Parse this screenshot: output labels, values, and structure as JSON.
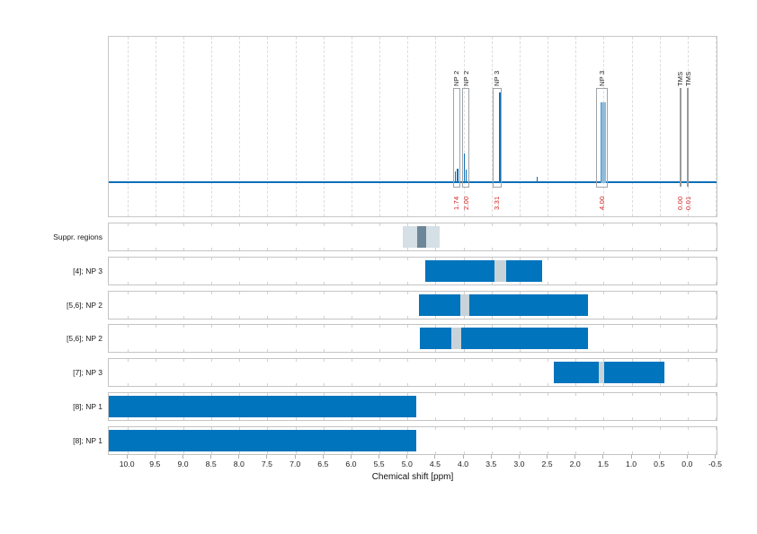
{
  "colors": {
    "bar_blue": "#0074bc",
    "line_blue": "#0b6fb6",
    "filled_peak": "#8dbbdc",
    "filled_peak_edge": "#4e94c7",
    "gap_gray": "#c8d2d9",
    "suppr_light": "#d5dfe6",
    "suppr_dark": "#6d8798",
    "integral_red": "#d42020",
    "label_black": "#1a1a1a"
  },
  "chart_data": {
    "type": "line",
    "subtype": "1H-NMR spectrum with integration regions and matched region tracks",
    "title": "",
    "xlabel": "Chemical shift [ppm]",
    "ylabel": "",
    "x_axis": {
      "label": "Chemical shift [ppm]",
      "xlim": [
        10.34,
        -0.54
      ],
      "tick_step": 0.5,
      "ticks": [
        "10.0",
        "9.5",
        "9.0",
        "8.5",
        "8.0",
        "7.5",
        "7.0",
        "6.5",
        "6.0",
        "5.5",
        "5.0",
        "4.5",
        "4.0",
        "3.5",
        "3.0",
        "2.5",
        "2.0",
        "1.5",
        "1.0",
        "0.5",
        "0.0",
        "-0.5"
      ],
      "grid": "dashed-vertical"
    },
    "spectrum": {
      "baseline": "flat",
      "peaks": [
        {
          "ppm": 4.15,
          "rel_height": 0.08,
          "style": "spike"
        },
        {
          "ppm": 4.11,
          "rel_height": 0.1,
          "style": "spike"
        },
        {
          "ppm": 3.99,
          "rel_height": 0.2,
          "style": "spike"
        },
        {
          "ppm": 3.96,
          "rel_height": 0.09,
          "style": "spike"
        },
        {
          "ppm": 3.36,
          "rel_height": 0.62,
          "style": "spike"
        },
        {
          "ppm": 2.69,
          "rel_height": 0.045,
          "style": "spike"
        },
        {
          "ppm": 1.52,
          "rel_height": 0.55,
          "style": "filled",
          "width_ppm": 0.07
        },
        {
          "ppm": 0.0,
          "rel_height": 0.015,
          "style": "spike"
        }
      ],
      "integral_regions": [
        {
          "label": "NP 2",
          "integral": "1.74",
          "ppm_from": 4.19,
          "ppm_to": 4.07,
          "style": "box"
        },
        {
          "label": "NP 2",
          "integral": "2.00",
          "ppm_from": 4.03,
          "ppm_to": 3.9,
          "style": "box"
        },
        {
          "label": "NP 3",
          "integral": "3.31",
          "ppm_from": 3.49,
          "ppm_to": 3.33,
          "style": "box"
        },
        {
          "label": "NP 3",
          "integral": "4.00",
          "ppm_from": 1.65,
          "ppm_to": 1.44,
          "style": "box"
        },
        {
          "label": "TMS",
          "integral": "0.00",
          "ppm_from": 0.15,
          "ppm_to": 0.13,
          "style": "line"
        },
        {
          "label": "TMS",
          "integral": "0.01",
          "ppm_from": 0.01,
          "ppm_to": -0.01,
          "style": "line"
        }
      ]
    },
    "rows": [
      {
        "label": "Suppr. regions",
        "kind": "suppression",
        "segments": [
          {
            "from": 5.1,
            "to": 4.43,
            "style": "suppr_light"
          },
          {
            "from": 4.83,
            "to": 4.67,
            "style": "suppr_dark"
          }
        ]
      },
      {
        "label": "[4]; NP 3",
        "kind": "match",
        "segments": [
          {
            "from": 4.69,
            "to": 3.46,
            "style": "blue"
          },
          {
            "from": 3.46,
            "to": 3.25,
            "style": "gap"
          },
          {
            "from": 3.25,
            "to": 2.6,
            "style": "blue"
          }
        ]
      },
      {
        "label": "[5,6]; NP 2",
        "kind": "match",
        "segments": [
          {
            "from": 4.8,
            "to": 4.06,
            "style": "blue"
          },
          {
            "from": 4.06,
            "to": 3.9,
            "style": "gap"
          },
          {
            "from": 3.9,
            "to": 1.78,
            "style": "blue"
          }
        ]
      },
      {
        "label": "[5,6]; NP 2",
        "kind": "match",
        "segments": [
          {
            "from": 4.78,
            "to": 4.22,
            "style": "blue"
          },
          {
            "from": 4.22,
            "to": 4.05,
            "style": "gap"
          },
          {
            "from": 4.05,
            "to": 1.78,
            "style": "blue"
          }
        ]
      },
      {
        "label": "[7]; NP 3",
        "kind": "match",
        "segments": [
          {
            "from": 2.39,
            "to": 1.6,
            "style": "blue"
          },
          {
            "from": 1.6,
            "to": 1.49,
            "style": "gap"
          },
          {
            "from": 1.49,
            "to": 0.42,
            "style": "blue"
          }
        ]
      },
      {
        "label": "[8]; NP 1",
        "kind": "match",
        "segments": [
          {
            "from": 10.34,
            "to": 4.85,
            "style": "blue"
          }
        ]
      },
      {
        "label": "[8]; NP 1",
        "kind": "match",
        "segments": [
          {
            "from": 10.34,
            "to": 4.85,
            "style": "blue"
          }
        ]
      }
    ]
  }
}
